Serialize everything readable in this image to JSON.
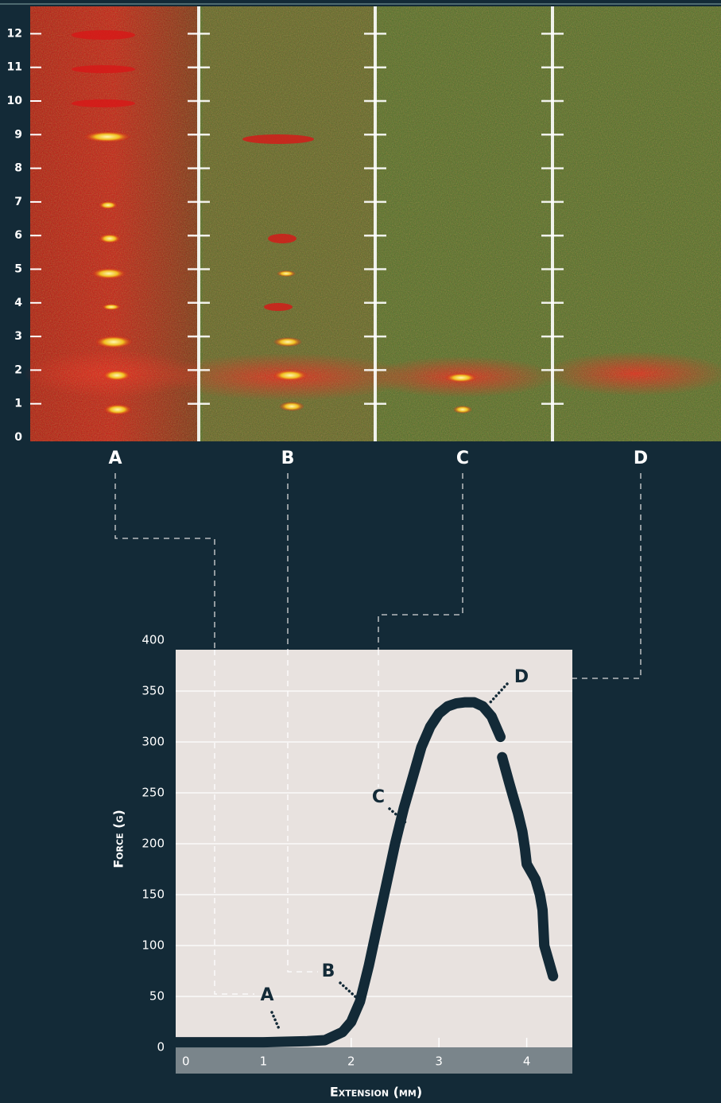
{
  "gel": {
    "row_labels": [
      0,
      1,
      2,
      3,
      4,
      5,
      6,
      7,
      8,
      9,
      10,
      11,
      12
    ],
    "lane_labels": [
      "A",
      "B",
      "C",
      "D"
    ]
  },
  "chart_data": {
    "type": "line",
    "xlabel": "Extension (mm)",
    "ylabel": "Force (g)",
    "x": [
      0.0,
      0.5,
      1.0,
      1.5,
      1.7,
      1.9,
      2.0,
      2.1,
      2.2,
      2.3,
      2.4,
      2.5,
      2.6,
      2.7,
      2.8,
      2.9,
      3.0,
      3.1,
      3.2,
      3.3,
      3.4,
      3.5,
      3.6,
      3.7,
      3.71,
      3.72,
      3.8,
      3.85,
      3.9,
      3.95,
      3.98,
      4.0,
      4.1,
      4.15,
      4.18,
      4.2,
      4.25,
      4.3
    ],
    "values": [
      5,
      5,
      5,
      6,
      7,
      15,
      25,
      45,
      80,
      120,
      160,
      200,
      235,
      265,
      295,
      315,
      328,
      335,
      338,
      339,
      339,
      335,
      325,
      305,
      null,
      285,
      260,
      245,
      230,
      212,
      195,
      180,
      165,
      150,
      135,
      100,
      85,
      70
    ],
    "color": "#132a37",
    "xlim": [
      0,
      4.52
    ],
    "ylim": [
      0,
      400
    ],
    "xticks": [
      0,
      1,
      2,
      3,
      4
    ],
    "yticks": [
      0,
      50,
      100,
      150,
      200,
      250,
      300,
      350,
      400
    ],
    "grid": true,
    "annotations": [
      "A",
      "B",
      "C",
      "D"
    ]
  }
}
